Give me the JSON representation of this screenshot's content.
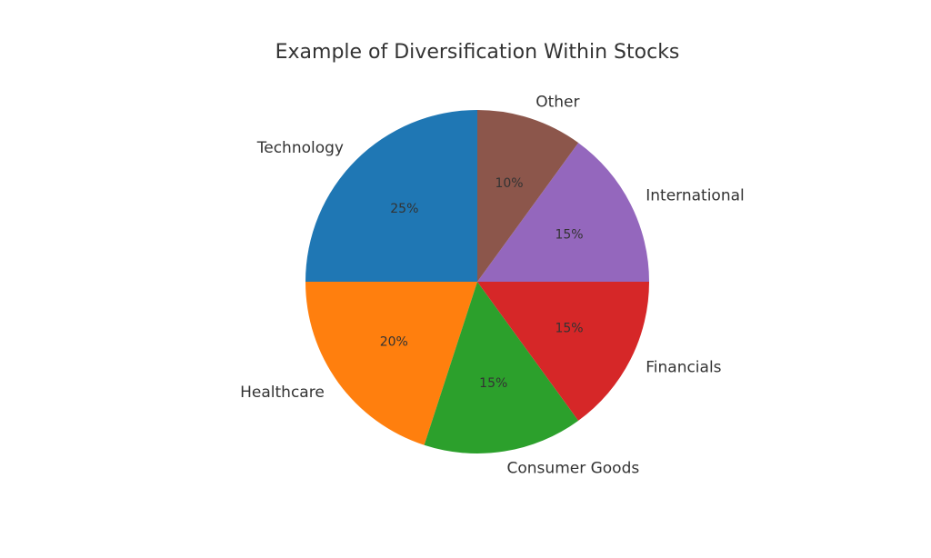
{
  "chart_data": {
    "type": "pie",
    "title": "Example of Diversification Within Stocks",
    "categories": [
      "Technology",
      "Healthcare",
      "Consumer Goods",
      "Financials",
      "International",
      "Other"
    ],
    "values": [
      25,
      20,
      15,
      15,
      15,
      10
    ],
    "value_labels": [
      "25%",
      "20%",
      "15%",
      "15%",
      "15%",
      "10%"
    ],
    "colors": [
      "#1f77b4",
      "#ff7f0e",
      "#2ca02c",
      "#d62728",
      "#9467bd",
      "#8c564b"
    ]
  }
}
